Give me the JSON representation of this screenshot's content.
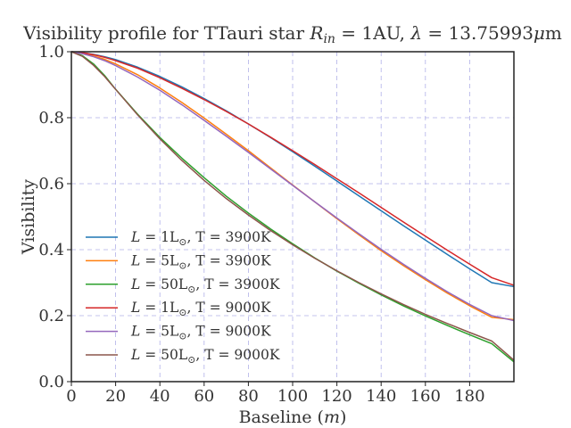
{
  "chart_data": {
    "type": "line",
    "title": "Visibility profile for TTauri star R_in = 1AU, λ = 13.75993μm",
    "title_parts": {
      "prefix": "Visibility profile for TTauri star ",
      "R": "R",
      "sub": "in",
      "eq1": " = 1AU, ",
      "lambda": "λ",
      "eq2": " = 13.75993",
      "mu": "μ",
      "unit": "m"
    },
    "xlabel": "Baseline (m)",
    "xlabel_parts": {
      "text": "Baseline ",
      "open": "(",
      "var": "m",
      "close": ")"
    },
    "ylabel": "Visibility",
    "xlim": [
      0,
      200
    ],
    "ylim": [
      0,
      1.0
    ],
    "x_ticks": [
      0,
      20,
      40,
      60,
      80,
      100,
      120,
      140,
      160,
      180
    ],
    "y_ticks": [
      0.0,
      0.2,
      0.4,
      0.6,
      0.8,
      1.0
    ],
    "x_tick_labels": [
      "0",
      "20",
      "40",
      "60",
      "80",
      "100",
      "120",
      "140",
      "160",
      "180"
    ],
    "y_tick_labels": [
      "0.0",
      "0.2",
      "0.4",
      "0.6",
      "0.8",
      "1.0"
    ],
    "grid": true,
    "legend_position": "lower-left",
    "x": [
      0,
      5,
      10,
      15,
      20,
      30,
      40,
      50,
      60,
      70,
      80,
      90,
      100,
      110,
      120,
      130,
      140,
      150,
      160,
      170,
      180,
      190,
      200
    ],
    "series": [
      {
        "name": "L = 1L⊙, T = 3900K",
        "L": "1",
        "T": "3900",
        "color": "#1f77b4",
        "values": [
          1.0,
          0.997,
          0.992,
          0.985,
          0.976,
          0.953,
          0.925,
          0.893,
          0.858,
          0.821,
          0.781,
          0.74,
          0.697,
          0.653,
          0.608,
          0.563,
          0.518,
          0.473,
          0.429,
          0.385,
          0.342,
          0.3,
          0.288
        ]
      },
      {
        "name": "L = 5L⊙, T = 3900K",
        "L": "5",
        "T": "3900",
        "color": "#ff7f0e",
        "values": [
          1.0,
          0.995,
          0.987,
          0.977,
          0.963,
          0.93,
          0.89,
          0.846,
          0.799,
          0.75,
          0.7,
          0.648,
          0.596,
          0.545,
          0.494,
          0.445,
          0.397,
          0.352,
          0.309,
          0.268,
          0.23,
          0.195,
          0.188
        ]
      },
      {
        "name": "L = 50L⊙, T = 3900K",
        "L": "50",
        "T": "3900",
        "color": "#2ca02c",
        "values": [
          1.0,
          0.988,
          0.963,
          0.928,
          0.886,
          0.81,
          0.74,
          0.677,
          0.618,
          0.562,
          0.511,
          0.463,
          0.418,
          0.375,
          0.335,
          0.298,
          0.263,
          0.23,
          0.199,
          0.17,
          0.142,
          0.115,
          0.06
        ]
      },
      {
        "name": "L = 1L⊙, T = 9000K",
        "L": "1",
        "T": "9000",
        "color": "#d62728",
        "values": [
          1.0,
          0.997,
          0.991,
          0.983,
          0.973,
          0.95,
          0.921,
          0.889,
          0.855,
          0.819,
          0.781,
          0.741,
          0.7,
          0.658,
          0.615,
          0.572,
          0.528,
          0.484,
          0.441,
          0.398,
          0.356,
          0.315,
          0.292
        ]
      },
      {
        "name": "L = 5L⊙, T = 9000K",
        "L": "5",
        "T": "9000",
        "color": "#9467bd",
        "values": [
          1.0,
          0.994,
          0.985,
          0.973,
          0.958,
          0.923,
          0.883,
          0.839,
          0.792,
          0.744,
          0.695,
          0.645,
          0.595,
          0.545,
          0.496,
          0.448,
          0.401,
          0.356,
          0.313,
          0.272,
          0.234,
          0.2,
          0.185
        ]
      },
      {
        "name": "L = 50L⊙, T = 9000K",
        "L": "50",
        "T": "9000",
        "color": "#8c564b",
        "values": [
          1.0,
          0.986,
          0.959,
          0.925,
          0.886,
          0.808,
          0.736,
          0.67,
          0.61,
          0.555,
          0.505,
          0.458,
          0.415,
          0.374,
          0.336,
          0.3,
          0.266,
          0.234,
          0.204,
          0.176,
          0.149,
          0.123,
          0.065
        ]
      }
    ]
  }
}
